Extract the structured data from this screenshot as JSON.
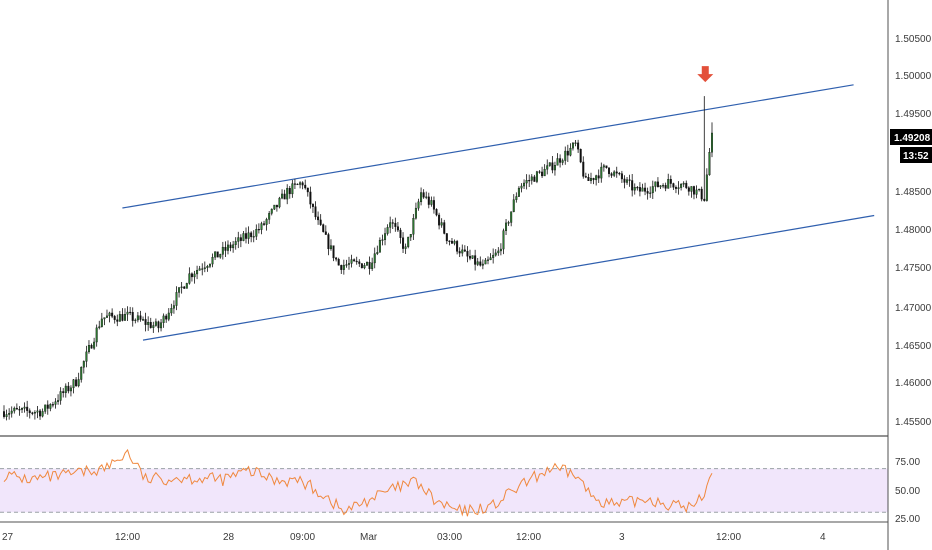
{
  "colors": {
    "bull": "#2e7d32",
    "bear": "#111111",
    "channel": "#2f5fae",
    "rsi_line": "#f0883e",
    "rsi_band": "#f1e6fb",
    "signal_arrow": "#e3503a",
    "price_tag_bg": "#000000"
  },
  "icons": {
    "signal": "arrow-down-icon"
  },
  "price_axis": {
    "labels": [
      "1.50500",
      "1.50000",
      "1.49500",
      "1.48500",
      "1.48000",
      "1.47500",
      "1.47000",
      "1.46500",
      "1.46000",
      "1.45500"
    ],
    "current_price": "1.49208",
    "countdown": "13:52"
  },
  "rsi_axis": {
    "labels": [
      "75.00",
      "50.00",
      "25.00"
    ]
  },
  "time_axis": {
    "labels": [
      "27",
      "12:00",
      "28",
      "09:00",
      "Mar",
      "03:00",
      "12:00",
      "3",
      "12:00",
      "4"
    ]
  },
  "chart_data": [
    {
      "type": "candlestick",
      "title": "",
      "y_scale": "price",
      "y_range": [
        1.4525,
        1.5095
      ],
      "bars": 276,
      "path_points": [
        [
          0,
          1.4555
        ],
        [
          15,
          1.4555
        ],
        [
          28,
          1.4595
        ],
        [
          38,
          1.468
        ],
        [
          48,
          1.4682
        ],
        [
          60,
          1.4667
        ],
        [
          72,
          1.4737
        ],
        [
          88,
          1.4775
        ],
        [
          100,
          1.48
        ],
        [
          110,
          1.4848
        ],
        [
          116,
          1.486
        ],
        [
          122,
          1.4805
        ],
        [
          130,
          1.475
        ],
        [
          142,
          1.4752
        ],
        [
          150,
          1.481
        ],
        [
          156,
          1.477
        ],
        [
          162,
          1.4846
        ],
        [
          166,
          1.483
        ],
        [
          172,
          1.4787
        ],
        [
          180,
          1.476
        ],
        [
          186,
          1.4747
        ],
        [
          192,
          1.4767
        ],
        [
          200,
          1.4855
        ],
        [
          212,
          1.488
        ],
        [
          222,
          1.491
        ],
        [
          226,
          1.486
        ],
        [
          234,
          1.488
        ],
        [
          246,
          1.4848
        ],
        [
          258,
          1.486
        ],
        [
          266,
          1.4855
        ],
        [
          272,
          1.484
        ],
        [
          274,
          1.49
        ],
        [
          275,
          1.492
        ]
      ],
      "signal": {
        "bar": 272,
        "high": 1.4975
      }
    },
    {
      "type": "line",
      "title": "",
      "y_scale": "oscillator",
      "y_range": [
        23,
        98
      ],
      "yticks": [
        75,
        50,
        25
      ],
      "band": [
        70,
        30
      ],
      "path_points": [
        [
          0,
          64
        ],
        [
          10,
          60
        ],
        [
          25,
          64
        ],
        [
          40,
          71
        ],
        [
          48,
          85
        ],
        [
          55,
          60
        ],
        [
          70,
          62
        ],
        [
          85,
          60
        ],
        [
          95,
          68
        ],
        [
          105,
          60
        ],
        [
          115,
          59
        ],
        [
          125,
          45
        ],
        [
          132,
          30
        ],
        [
          140,
          40
        ],
        [
          150,
          50
        ],
        [
          160,
          58
        ],
        [
          168,
          39
        ],
        [
          178,
          30
        ],
        [
          190,
          36
        ],
        [
          198,
          50
        ],
        [
          212,
          70
        ],
        [
          222,
          65
        ],
        [
          228,
          45
        ],
        [
          238,
          36
        ],
        [
          250,
          43
        ],
        [
          260,
          36
        ],
        [
          268,
          35
        ],
        [
          272,
          48
        ],
        [
          275,
          70
        ]
      ]
    }
  ],
  "channel_lines": [
    {
      "name": "channel-resistance",
      "points": [
        [
          46,
          1.4826
        ],
        [
          330,
          1.499
        ]
      ]
    },
    {
      "name": "channel-support",
      "points": [
        [
          54,
          1.465
        ],
        [
          338,
          1.4816
        ]
      ]
    }
  ]
}
